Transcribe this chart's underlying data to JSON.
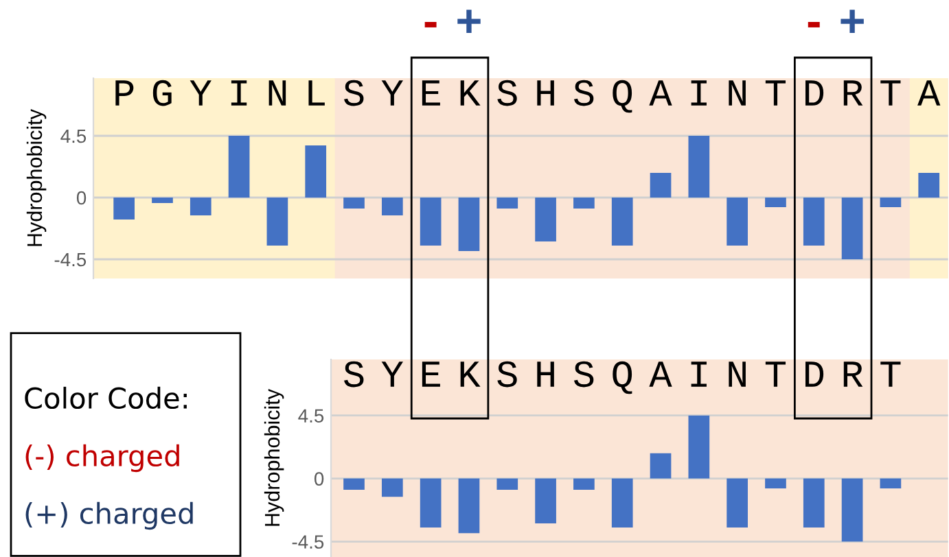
{
  "chart_data": [
    {
      "type": "bar",
      "ylabel": "Hydrophobicity",
      "categories": [
        "P",
        "G",
        "Y",
        "I",
        "N",
        "L",
        "S",
        "Y",
        "E",
        "K",
        "S",
        "H",
        "S",
        "Q",
        "A",
        "I",
        "N",
        "T",
        "D",
        "R",
        "T",
        "A"
      ],
      "values": [
        -1.6,
        -0.4,
        -1.3,
        4.5,
        -3.5,
        3.8,
        -0.8,
        -1.3,
        -3.5,
        -3.9,
        -0.8,
        -3.2,
        -0.8,
        -3.5,
        1.8,
        4.5,
        -3.5,
        -0.7,
        -3.5,
        -4.5,
        -0.7,
        1.8
      ],
      "color": "#4472c4",
      "ylim": [
        -5.9,
        8.7
      ],
      "yticks": [
        4.5,
        0,
        -4.5
      ],
      "grid": "y",
      "annotations": [
        "-",
        "+",
        "-",
        "+",
        "Color Code:",
        "(-) charged",
        "(+) charged"
      ]
    },
    {
      "type": "bar",
      "ylabel": "Hydrophobicity",
      "categories": [
        "S",
        "Y",
        "E",
        "K",
        "S",
        "H",
        "S",
        "Q",
        "A",
        "I",
        "N",
        "T",
        "D",
        "R",
        "T"
      ],
      "values": [
        -0.8,
        -1.3,
        -3.5,
        -3.9,
        -0.8,
        -3.2,
        -0.8,
        -3.5,
        1.8,
        4.5,
        -3.5,
        -0.7,
        -3.5,
        -4.5,
        -0.7
      ],
      "color": "#4472c4",
      "ylim": [
        -5.6,
        8.5
      ],
      "yticks": [
        4.5,
        0,
        -4.5
      ],
      "grid": "y"
    }
  ]
}
